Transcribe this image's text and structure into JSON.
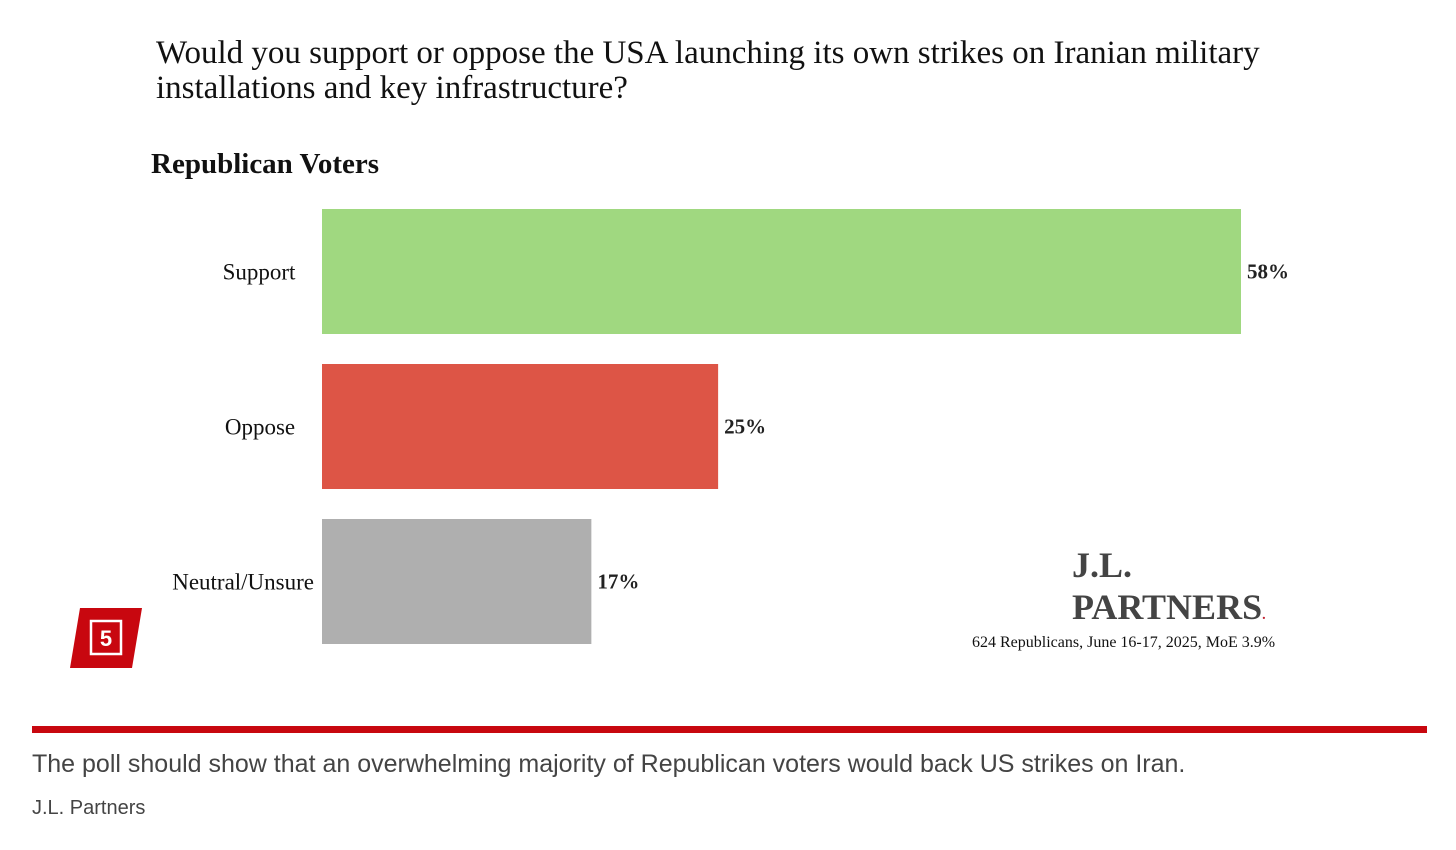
{
  "question": "Would you support or oppose the USA launching its own strikes on Iranian military installations and key infrastructure?",
  "chart_data": {
    "type": "bar",
    "orientation": "horizontal",
    "title": "Republican Voters",
    "categories": [
      "Support",
      "Oppose",
      "Neutral/Unsure"
    ],
    "values": [
      58,
      25,
      17
    ],
    "value_labels": [
      "58%",
      "25%",
      "17%"
    ],
    "colors": [
      "#a0d880",
      "#dd5546",
      "#afafaf"
    ],
    "xlim": [
      0,
      58
    ],
    "grid": false,
    "legend": "none"
  },
  "logo": {
    "line1": "J.L.",
    "line2": "PARTNERS",
    "dot": "."
  },
  "sample_note": "624 Republicans, June 16-17, 2025, MoE 3.9%",
  "badge": {
    "label": "5",
    "color": "#c8070f"
  },
  "caption": "The poll should show that an overwhelming majority of Republican voters would back US strikes on Iran.",
  "credit": "J.L. Partners"
}
